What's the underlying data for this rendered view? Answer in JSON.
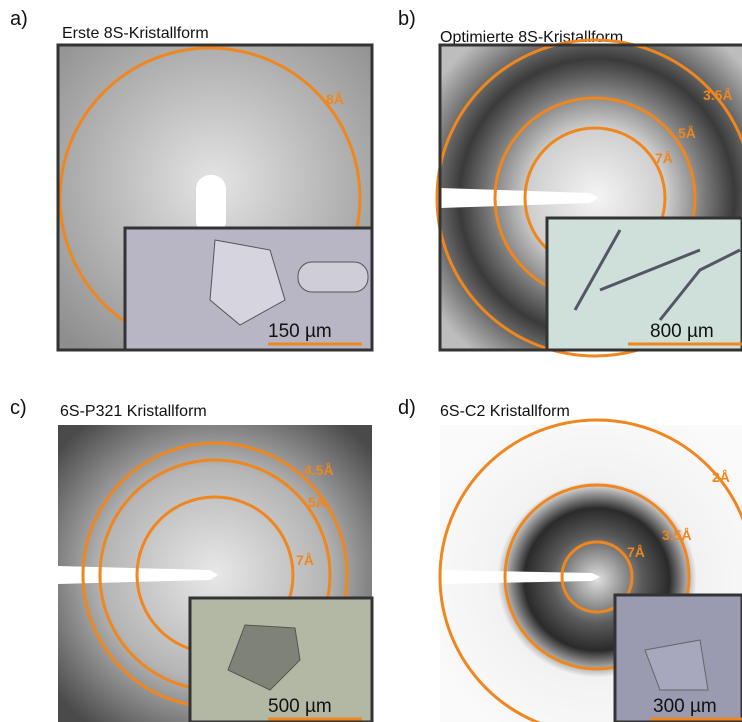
{
  "panels": [
    {
      "label": "a)",
      "title": "Erste 8S-Kristallform",
      "rings": [
        "8Å"
      ],
      "scale_bar": "150 µm"
    },
    {
      "label": "b)",
      "title": "Optimierte 8S-Kristallform",
      "rings": [
        "3.5Å",
        "5Å",
        "7Å"
      ],
      "scale_bar": "800 µm"
    },
    {
      "label": "c)",
      "title": "6S-P321 Kristallform",
      "rings": [
        "4.5Å",
        "5Å",
        "7Å"
      ],
      "scale_bar": "500 µm"
    },
    {
      "label": "d)",
      "title": "6S-C2 Kristallform",
      "rings": [
        "2Å",
        "3.5Å",
        "7Å"
      ],
      "scale_bar": "300 µm"
    }
  ]
}
